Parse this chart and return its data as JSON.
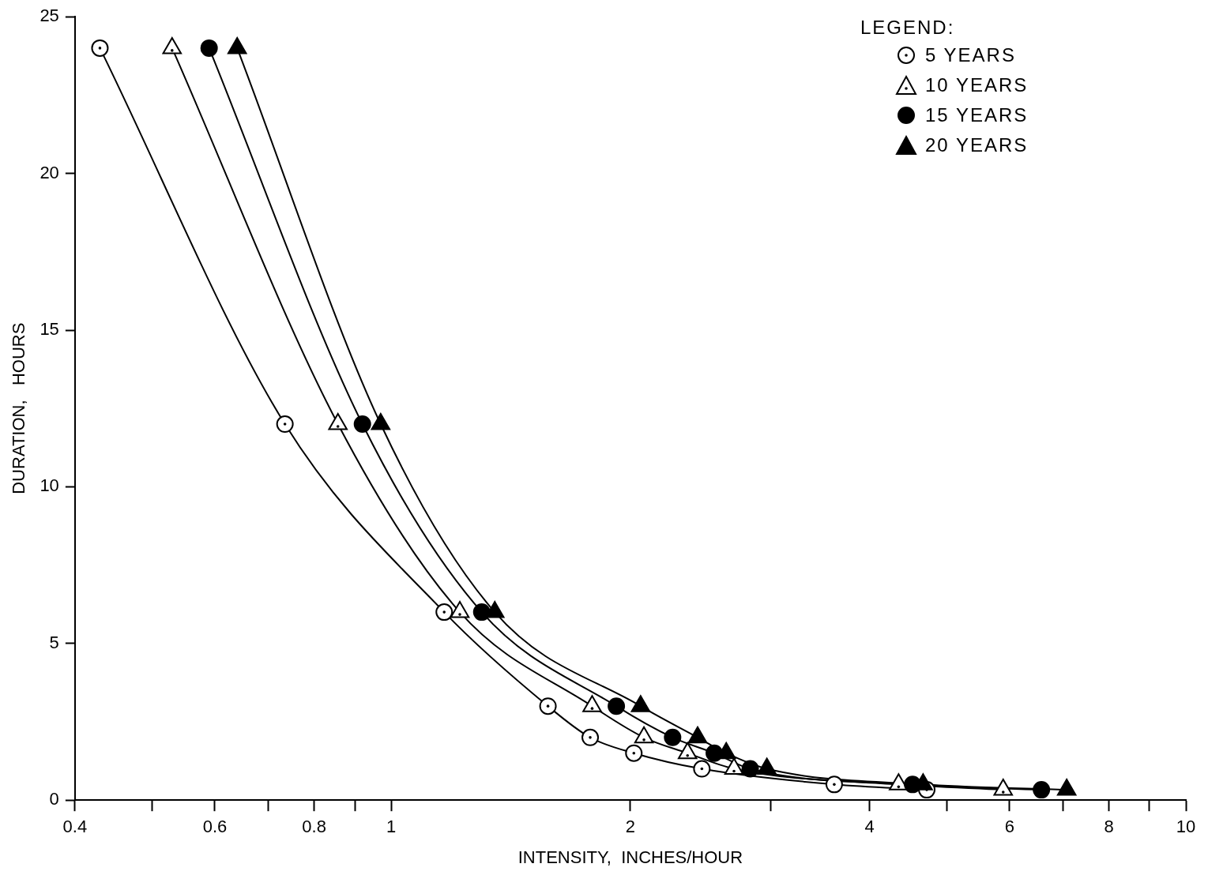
{
  "chart_data": {
    "type": "scatter",
    "xlabel": "INTENSITY,  INCHES/HOUR",
    "ylabel": "DURATION,   HOURS",
    "legend_title": "LEGEND:",
    "legend": "top right",
    "grid": false,
    "log": "x",
    "xlim": [
      0.4,
      10
    ],
    "xticks": [
      0.4,
      {
        "value": 0.5,
        "label": null
      },
      0.6,
      {
        "value": 0.7,
        "label": null
      },
      0.8,
      {
        "value": 0.9,
        "label": null
      },
      1,
      2,
      {
        "value": 3,
        "label": null
      },
      4,
      {
        "value": 5,
        "label": null
      },
      6,
      {
        "value": 7,
        "label": null
      },
      8,
      {
        "value": 9,
        "label": null
      },
      10
    ],
    "ylim": [
      0,
      25
    ],
    "yticks": [
      0,
      5,
      10,
      15,
      20,
      25
    ],
    "series": [
      {
        "type": "line",
        "color": "#000000",
        "marker": "none",
        "x": [
          0.43,
          0.735,
          1.166,
          1.575,
          1.78,
          2.02,
          2.46,
          3.61,
          4.72
        ],
        "values": [
          24,
          12,
          6,
          3,
          2,
          1.5,
          1,
          0.5,
          0.33
        ]
      },
      {
        "type": "line",
        "color": "#000000",
        "marker": "none",
        "x": [
          0.53,
          0.857,
          1.22,
          1.79,
          2.08,
          2.36,
          2.7,
          4.35,
          5.89
        ],
        "values": [
          24,
          12,
          6,
          3,
          2,
          1.5,
          1,
          0.5,
          0.33
        ]
      },
      {
        "type": "line",
        "color": "#000000",
        "marker": "none",
        "x": [
          0.59,
          0.92,
          1.3,
          1.92,
          2.26,
          2.55,
          2.83,
          4.53,
          6.58
        ],
        "values": [
          24,
          12,
          6,
          3,
          2,
          1.5,
          1,
          0.5,
          0.33
        ]
      },
      {
        "type": "line",
        "color": "#000000",
        "marker": "none",
        "x": [
          0.64,
          0.97,
          1.35,
          2.06,
          2.43,
          2.64,
          2.97,
          4.67,
          7.08
        ],
        "values": [
          24,
          12,
          6,
          3,
          2,
          1.5,
          1,
          0.5,
          0.33
        ]
      },
      {
        "name": "5  YEARS",
        "color": "#ffffff",
        "marker": "circle",
        "x": [
          0.43,
          0.735,
          1.166,
          1.575,
          1.78,
          2.02,
          2.46,
          3.61,
          4.72
        ],
        "values": [
          24,
          12,
          6,
          3,
          2,
          1.5,
          1,
          0.5,
          0.33
        ]
      },
      {
        "name": "10  YEARS",
        "color": "#ffffff",
        "marker": "triangle",
        "x": [
          0.53,
          0.857,
          1.22,
          1.79,
          2.08,
          2.36,
          2.7,
          4.35,
          5.89
        ],
        "values": [
          24,
          12,
          6,
          3,
          2,
          1.5,
          1,
          0.5,
          0.33
        ]
      },
      {
        "name": "15  YEARS",
        "color": "#000000",
        "marker": "circle",
        "x": [
          0.59,
          0.92,
          1.3,
          1.92,
          2.26,
          2.55,
          2.83,
          4.53,
          6.58
        ],
        "values": [
          24,
          12,
          6,
          3,
          2,
          1.5,
          1,
          0.5,
          0.33
        ]
      },
      {
        "name": "20  YEARS",
        "color": "#000000",
        "marker": "triangle",
        "x": [
          0.64,
          0.97,
          1.35,
          2.06,
          2.43,
          2.64,
          2.97,
          4.67,
          7.08
        ],
        "values": [
          24,
          12,
          6,
          3,
          2,
          1.5,
          1,
          0.5,
          0.33
        ]
      }
    ]
  }
}
